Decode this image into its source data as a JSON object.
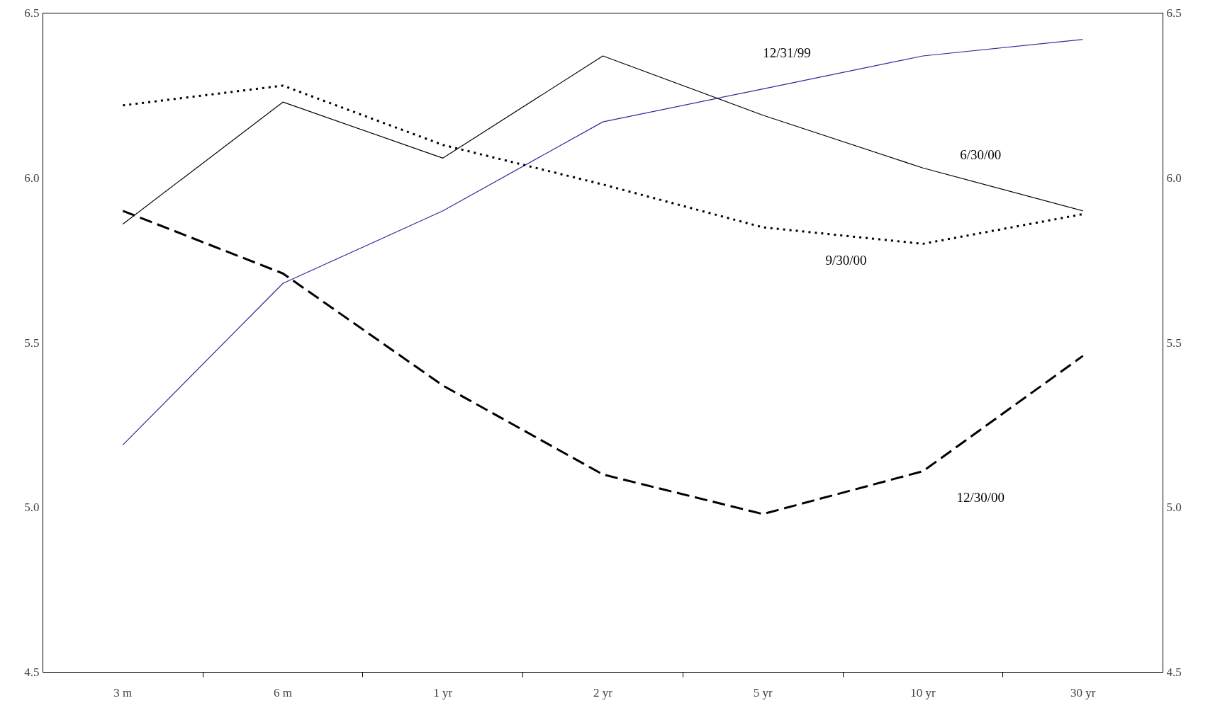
{
  "chart_data": {
    "type": "line",
    "categories": [
      "3 m",
      "6 m",
      "1 yr",
      "2 yr",
      "5 yr",
      "10 yr",
      "30 yr"
    ],
    "series": [
      {
        "name": "12/31/99",
        "color": "#2b2b9c",
        "line_style": "solid",
        "values": [
          5.19,
          5.68,
          5.9,
          6.17,
          6.27,
          6.37,
          6.42
        ]
      },
      {
        "name": "6/30/00",
        "color": "#000000",
        "line_style": "solid",
        "values": [
          5.86,
          6.23,
          6.06,
          6.37,
          6.19,
          6.03,
          5.9
        ]
      },
      {
        "name": "9/30/00",
        "color": "#000000",
        "line_style": "dotted",
        "values": [
          6.22,
          6.28,
          6.1,
          5.98,
          5.85,
          5.8,
          5.89
        ]
      },
      {
        "name": "12/30/00",
        "color": "#000000",
        "line_style": "dashed",
        "values": [
          5.9,
          5.71,
          5.37,
          5.1,
          4.98,
          5.11,
          5.46
        ]
      }
    ],
    "ylim": [
      4.5,
      6.5
    ],
    "yticks": [
      {
        "value": 4.5,
        "label": "4.5"
      },
      {
        "value": 5.0,
        "label": "5.0"
      },
      {
        "value": 5.5,
        "label": "5.5"
      },
      {
        "value": 6.0,
        "label": "6.0"
      },
      {
        "value": 6.5,
        "label": "6.5"
      }
    ],
    "y2lim": [
      4.5,
      6.5
    ],
    "y2ticks": [
      {
        "value": 4.5,
        "label": "4.5"
      },
      {
        "value": 5.0,
        "label": "5.0"
      },
      {
        "value": 5.5,
        "label": "5.5"
      },
      {
        "value": 6.0,
        "label": "6.0"
      },
      {
        "value": 6.5,
        "label": "6.5"
      }
    ],
    "grid": false,
    "marker": "none"
  }
}
